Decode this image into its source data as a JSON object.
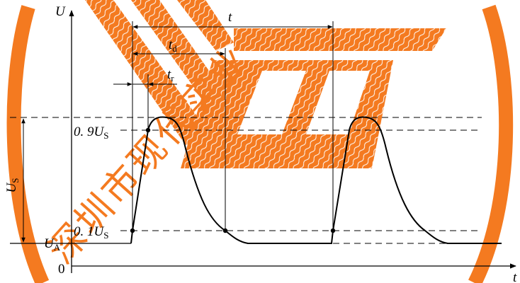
{
  "colors": {
    "watermark": "#F47A20",
    "ink": "#000000",
    "background": "#FFFFFF"
  },
  "watermark": {
    "text": "深圳市现代实业",
    "logo": "orange-stripes-logo"
  },
  "axes": {
    "y_label": "U",
    "x_label": "t",
    "origin_label": "0"
  },
  "levels": {
    "ua": {
      "main": "U",
      "sub": "A"
    },
    "us_span": {
      "main": "U",
      "sub": "S"
    },
    "ninety": {
      "main": "0. 9U",
      "sub": "S"
    },
    "ten": {
      "main": "0. 1U",
      "sub": "S"
    }
  },
  "intervals": {
    "period": {
      "main": "t",
      "sub": ""
    },
    "pulse_width": {
      "main": "t",
      "sub": "d"
    },
    "rise_time": {
      "main": "t",
      "sub": "r"
    }
  }
}
